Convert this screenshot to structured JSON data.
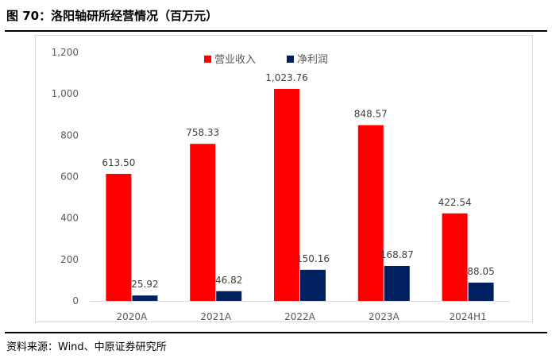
{
  "figure": {
    "title": "图 70：洛阳轴研所经营情况（百万元）",
    "source": "资料来源：Wind、中原证券研究所"
  },
  "colors": {
    "series_1": "#ff0000",
    "series_2": "#002060",
    "axis_line": "#d9d9d9"
  },
  "chart_data": {
    "type": "bar",
    "categories": [
      "2020A",
      "2021A",
      "2022A",
      "2023A",
      "2024H1"
    ],
    "series": [
      {
        "name": "营业收入",
        "values": [
          613.5,
          758.33,
          1023.76,
          848.57,
          422.54
        ],
        "labels": [
          "613.50",
          "758.33",
          "1,023.76",
          "848.57",
          "422.54"
        ]
      },
      {
        "name": "净利润",
        "values": [
          25.92,
          46.82,
          150.16,
          168.87,
          88.05
        ],
        "labels": [
          "25.92",
          "46.82",
          "150.16",
          "168.87",
          "88.05"
        ]
      }
    ],
    "ylim": [
      0,
      1200
    ],
    "yticks": [
      0,
      200,
      400,
      600,
      800,
      1000,
      1200
    ],
    "ytick_labels": [
      "0",
      "200",
      "400",
      "600",
      "800",
      "1,000",
      "1,200"
    ],
    "legend_position": "top-center",
    "grid": false
  }
}
